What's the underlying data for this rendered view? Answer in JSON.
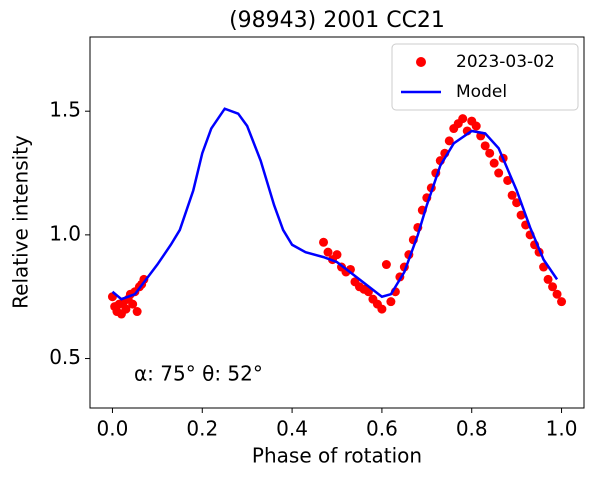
{
  "chart_data": {
    "type": "scatter",
    "title": "(98943) 2001 CC21",
    "xlabel": "Phase of rotation",
    "ylabel": "Relative intensity",
    "annotation": "α: 75° θ: 52°",
    "xlim": [
      -0.05,
      1.05
    ],
    "ylim": [
      0.3,
      1.8
    ],
    "xticks": [
      {
        "value": 0,
        "label": "0.0"
      },
      0.2,
      0.4,
      0.6,
      0.8,
      {
        "value": 1,
        "label": "1.0"
      }
    ],
    "yticks": [
      0.5,
      {
        "value": 1,
        "label": "1.0"
      },
      1.5
    ],
    "grid": false,
    "legend": "upper right",
    "series": [
      {
        "name": "2023-03-02",
        "type": "scatter",
        "color": "#ff0000",
        "x": [
          0.0,
          0.005,
          0.01,
          0.015,
          0.02,
          0.025,
          0.03,
          0.035,
          0.04,
          0.045,
          0.05,
          0.055,
          0.06,
          0.065,
          0.07,
          0.47,
          0.48,
          0.49,
          0.5,
          0.51,
          0.52,
          0.53,
          0.54,
          0.55,
          0.56,
          0.57,
          0.58,
          0.59,
          0.6,
          0.61,
          0.62,
          0.63,
          0.64,
          0.65,
          0.66,
          0.67,
          0.68,
          0.69,
          0.7,
          0.71,
          0.72,
          0.73,
          0.74,
          0.75,
          0.76,
          0.77,
          0.78,
          0.79,
          0.8,
          0.81,
          0.82,
          0.83,
          0.84,
          0.85,
          0.86,
          0.87,
          0.88,
          0.89,
          0.9,
          0.91,
          0.92,
          0.93,
          0.94,
          0.95,
          0.96,
          0.97,
          0.98,
          0.99,
          1.0
        ],
        "y": [
          0.75,
          0.71,
          0.69,
          0.72,
          0.68,
          0.73,
          0.7,
          0.74,
          0.76,
          0.72,
          0.77,
          0.69,
          0.79,
          0.8,
          0.82,
          0.97,
          0.93,
          0.9,
          0.92,
          0.87,
          0.85,
          0.86,
          0.81,
          0.79,
          0.78,
          0.77,
          0.74,
          0.72,
          0.7,
          0.88,
          0.73,
          0.77,
          0.83,
          0.87,
          0.92,
          0.98,
          1.03,
          1.1,
          1.15,
          1.19,
          1.25,
          1.3,
          1.33,
          1.38,
          1.43,
          1.45,
          1.47,
          1.42,
          1.46,
          1.44,
          1.4,
          1.36,
          1.33,
          1.29,
          1.25,
          1.31,
          1.22,
          1.16,
          1.13,
          1.08,
          1.04,
          1.0,
          0.96,
          0.93,
          0.87,
          0.82,
          0.79,
          0.76,
          0.73
        ]
      },
      {
        "name": "Model",
        "type": "line",
        "color": "#0000ff",
        "x": [
          0.0,
          0.02,
          0.05,
          0.1,
          0.13,
          0.15,
          0.18,
          0.2,
          0.22,
          0.25,
          0.28,
          0.3,
          0.33,
          0.36,
          0.38,
          0.4,
          0.43,
          0.47,
          0.5,
          0.55,
          0.6,
          0.62,
          0.65,
          0.68,
          0.7,
          0.73,
          0.76,
          0.8,
          0.83,
          0.86,
          0.9,
          0.93,
          0.96,
          0.99
        ],
        "y": [
          0.77,
          0.74,
          0.76,
          0.88,
          0.96,
          1.02,
          1.18,
          1.33,
          1.43,
          1.51,
          1.49,
          1.44,
          1.3,
          1.12,
          1.02,
          0.96,
          0.93,
          0.91,
          0.89,
          0.82,
          0.75,
          0.76,
          0.85,
          1.0,
          1.12,
          1.28,
          1.37,
          1.42,
          1.41,
          1.35,
          1.18,
          1.03,
          0.9,
          0.82
        ]
      }
    ]
  }
}
